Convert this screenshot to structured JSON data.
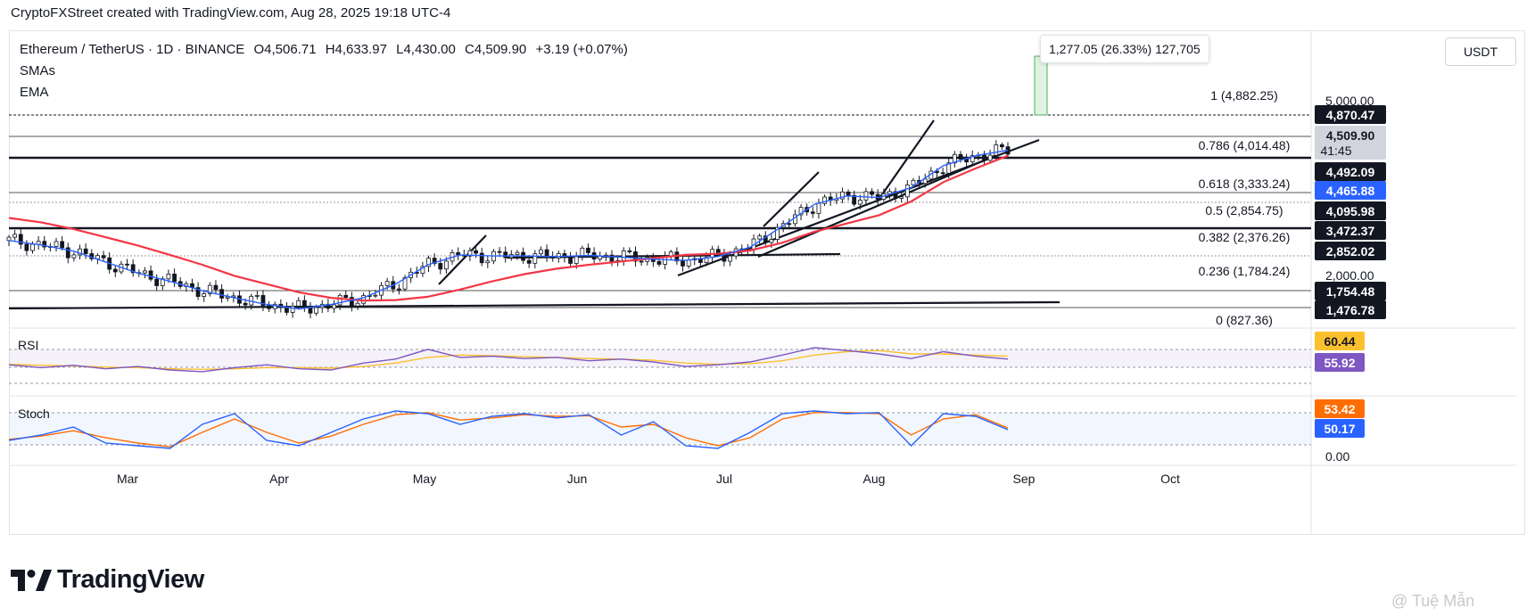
{
  "header": {
    "credit": "CryptoFXStreet created with TradingView.com, Aug 28, 2025 19:18 UTC-4"
  },
  "legend": {
    "symbol": "Ethereum / TetherUS · 1D · BINANCE",
    "open": "O4,506.71",
    "high": "H4,633.97",
    "low": "L4,430.00",
    "close": "C4,509.90",
    "change": "+3.19 (+0.07%)",
    "indicators": [
      "SMAs",
      "EMA"
    ]
  },
  "measure": {
    "label": "1,277.05 (26.33%) 127,705"
  },
  "currency": {
    "label": "USDT"
  },
  "brand": {
    "name": "TradingView"
  },
  "watermark": {
    "text": "@ Tuệ Mẫn"
  },
  "colors": {
    "bull": "#131722",
    "bear": "#131722",
    "sma_fast": "#2962ff",
    "sma_slow": "#f23645",
    "rsi": "#7e57c2",
    "rsi_ma": "#fbc02d",
    "stoch_k": "#2962ff",
    "stoch_d": "#ff6d00"
  },
  "chart_data": [
    {
      "type": "candlestick",
      "title": "Ethereum / TetherUS · 1D · BINANCE",
      "ylabel": "USDT",
      "x_labels": [
        "Mar",
        "Apr",
        "May",
        "Jun",
        "Jul",
        "Aug",
        "Sep",
        "Oct"
      ],
      "y_ticks": [
        "5,000.00",
        "2,000.00"
      ],
      "ylim": [
        1300,
        5200
      ],
      "series": [
        {
          "name": "SMA (fast)",
          "values": [
            2840,
            2760,
            2650,
            2450,
            2250,
            2100,
            1930,
            1800,
            1680,
            1600,
            1680,
            1800,
            2050,
            2400,
            2580,
            2560,
            2560,
            2550,
            2570,
            2540,
            2500,
            2480,
            2550,
            2720,
            3100,
            3500,
            3650,
            3620,
            3800,
            4200,
            4380,
            4480
          ]
        },
        {
          "name": "SMA (slow)",
          "values": [
            3250,
            3170,
            3050,
            2900,
            2750,
            2580,
            2400,
            2200,
            2050,
            1900,
            1800,
            1750,
            1760,
            1820,
            1950,
            2100,
            2230,
            2330,
            2400,
            2460,
            2520,
            2580,
            2600,
            2660,
            2800,
            3000,
            3150,
            3300,
            3550,
            3900,
            4150,
            4380
          ]
        }
      ],
      "fibonacci": [
        {
          "level": "1",
          "price": 4882.25
        },
        {
          "level": "0.786",
          "price": 4014.48
        },
        {
          "level": "0.618",
          "price": 3333.24
        },
        {
          "level": "0.5",
          "price": 2854.75
        },
        {
          "level": "0.382",
          "price": 2376.26
        },
        {
          "level": "0.236",
          "price": 1784.24
        },
        {
          "level": "0",
          "price": 827.36
        }
      ],
      "price_labels": [
        {
          "text": "4,870.47",
          "bg": "#131722",
          "fg": "#ffffff"
        },
        {
          "text": "4,509.90",
          "sub": "41:45",
          "bg": "#d1d4dc",
          "fg": "#131722"
        },
        {
          "text": "4,492.09",
          "bg": "#131722",
          "fg": "#ffffff"
        },
        {
          "text": "4,465.88",
          "bg": "#2962ff",
          "fg": "#ffffff"
        },
        {
          "text": "4,095.98",
          "bg": "#131722",
          "fg": "#ffffff"
        },
        {
          "text": "3,472.37",
          "bg": "#131722",
          "fg": "#ffffff"
        },
        {
          "text": "2,852.02",
          "bg": "#131722",
          "fg": "#ffffff"
        },
        {
          "text": "1,754.48",
          "bg": "#131722",
          "fg": "#ffffff"
        },
        {
          "text": "1,476.78",
          "bg": "#131722",
          "fg": "#ffffff"
        }
      ]
    },
    {
      "type": "line",
      "title": "RSI",
      "ylim": [
        0,
        100
      ],
      "series": [
        {
          "name": "RSI",
          "values": [
            45,
            40,
            44,
            38,
            42,
            36,
            33,
            40,
            45,
            38,
            36,
            48,
            55,
            72,
            58,
            60,
            56,
            58,
            52,
            55,
            50,
            42,
            45,
            50,
            62,
            75,
            70,
            64,
            56,
            68,
            60,
            55
          ]
        },
        {
          "name": "RSI MA",
          "values": [
            46,
            44,
            43,
            41,
            40,
            38,
            37,
            38,
            40,
            40,
            39,
            42,
            48,
            58,
            62,
            61,
            59,
            58,
            56,
            55,
            53,
            48,
            46,
            47,
            52,
            62,
            68,
            70,
            64,
            64,
            62,
            60
          ]
        }
      ],
      "value_labels": [
        {
          "text": "60.44",
          "bg": "#fbc02d",
          "fg": "#131722"
        },
        {
          "text": "55.92",
          "bg": "#7e57c2",
          "fg": "#ffffff"
        }
      ]
    },
    {
      "type": "line",
      "title": "Stoch",
      "ylim": [
        0,
        100
      ],
      "y_ticks": [
        "0.00"
      ],
      "series": [
        {
          "name": "%K",
          "values": [
            30,
            40,
            55,
            25,
            20,
            15,
            60,
            80,
            30,
            20,
            45,
            70,
            85,
            80,
            60,
            75,
            80,
            72,
            78,
            40,
            65,
            20,
            15,
            45,
            80,
            85,
            80,
            82,
            20,
            80,
            75,
            50
          ]
        },
        {
          "name": "%D",
          "values": [
            32,
            38,
            48,
            35,
            25,
            18,
            45,
            70,
            45,
            25,
            38,
            60,
            78,
            82,
            68,
            72,
            78,
            75,
            76,
            55,
            60,
            35,
            20,
            35,
            70,
            82,
            82,
            80,
            40,
            70,
            78,
            53
          ]
        }
      ],
      "value_labels": [
        {
          "text": "53.42",
          "bg": "#ff6d00",
          "fg": "#ffffff"
        },
        {
          "text": "50.17",
          "bg": "#2962ff",
          "fg": "#ffffff"
        }
      ]
    }
  ]
}
